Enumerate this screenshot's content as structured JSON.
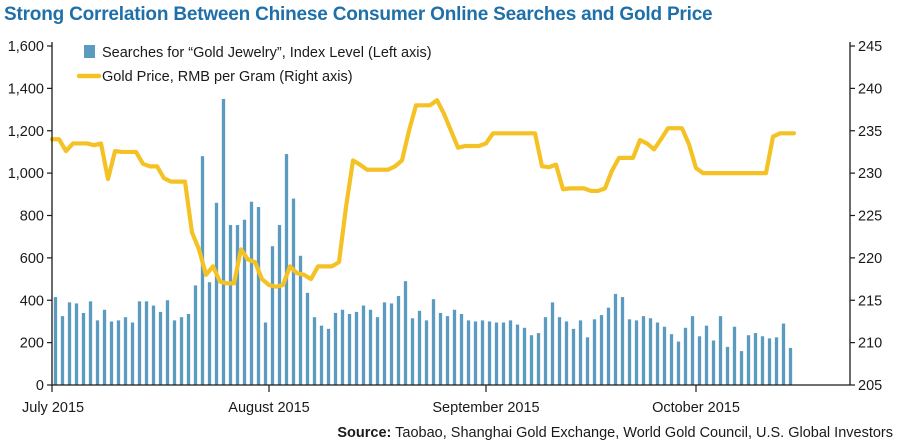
{
  "title": "Strong Correlation Between Chinese Consumer Online Searches and Gold Price",
  "source": {
    "label": "Source:",
    "text": "Taobao, Shanghai Gold Exchange, World Gold Council, U.S. Global Investors"
  },
  "colors": {
    "title": "#1f6fa8",
    "bars": "#5b9bc0",
    "line": "#f5c225",
    "axis": "#1a1a1a"
  },
  "chart_data": {
    "type": "bar",
    "title": "Strong Correlation Between Chinese Consumer Online Searches and Gold Price",
    "legend": {
      "placement": "top-left",
      "bars_label": "Searches for “Gold Jewelry”, Index Level (Left axis)",
      "line_label": "Gold Price, RMB per Gram (Right axis)"
    },
    "left_axis": {
      "ylim": [
        0,
        1600
      ],
      "ticks": [
        0,
        200,
        400,
        600,
        800,
        1000,
        1200,
        1400,
        1600
      ],
      "tick_labels": [
        "0",
        "200",
        "400",
        "600",
        "800",
        "1,000",
        "1,200",
        "1,400",
        "1,600"
      ]
    },
    "right_axis": {
      "ylim": [
        205,
        245
      ],
      "ticks": [
        205,
        210,
        215,
        220,
        225,
        230,
        235,
        240,
        245
      ],
      "tick_labels": [
        "205",
        "210",
        "215",
        "220",
        "225",
        "230",
        "235",
        "240",
        "245"
      ]
    },
    "x_axis": {
      "range_days": [
        1,
        115
      ],
      "ticks": [
        {
          "day": 1,
          "label": "July 2015"
        },
        {
          "day": 32,
          "label": "August 2015"
        },
        {
          "day": 63,
          "label": "September 2015"
        },
        {
          "day": 93,
          "label": "October 2015"
        }
      ]
    },
    "grid": false,
    "bars": {
      "name": "Searches for “Gold Jewelry”, Index Level (Left axis)",
      "values": [
        415,
        325,
        390,
        385,
        340,
        395,
        305,
        355,
        300,
        305,
        320,
        295,
        395,
        395,
        375,
        345,
        400,
        305,
        320,
        335,
        470,
        1080,
        485,
        860,
        1350,
        755,
        755,
        780,
        865,
        840,
        295,
        655,
        755,
        1090,
        880,
        610,
        435,
        320,
        280,
        265,
        340,
        355,
        335,
        345,
        375,
        355,
        320,
        390,
        385,
        420,
        490,
        315,
        350,
        305,
        405,
        340,
        325,
        355,
        335,
        305,
        300,
        305,
        300,
        295,
        295,
        305,
        285,
        270,
        235,
        245,
        320,
        390,
        320,
        300,
        265,
        305,
        225,
        310,
        330,
        365,
        430,
        415,
        310,
        305,
        325,
        315,
        295,
        275,
        240,
        205,
        270,
        325,
        230,
        280,
        210,
        325,
        180,
        275,
        160,
        235,
        245,
        230,
        220,
        225,
        290,
        175
      ],
      "first_day": 1
    },
    "line": {
      "name": "Gold Price, RMB per Gram (Right axis)",
      "points": [
        [
          1,
          234
        ],
        [
          2,
          234
        ],
        [
          3,
          232.6
        ],
        [
          4,
          233.5
        ],
        [
          5,
          233.5
        ],
        [
          6,
          233.5
        ],
        [
          7,
          233.3
        ],
        [
          8,
          233.5
        ],
        [
          9,
          229.3
        ],
        [
          10,
          232.6
        ],
        [
          11,
          232.5
        ],
        [
          12,
          232.5
        ],
        [
          13,
          232.5
        ],
        [
          14,
          231.1
        ],
        [
          15,
          230.8
        ],
        [
          16,
          230.8
        ],
        [
          17,
          229.4
        ],
        [
          18,
          229.0
        ],
        [
          19,
          229.0
        ],
        [
          20,
          229.0
        ],
        [
          21,
          223.0
        ],
        [
          22,
          221.0
        ],
        [
          23,
          218.0
        ],
        [
          24,
          219.0
        ],
        [
          25,
          217.2
        ],
        [
          26,
          217.0
        ],
        [
          27,
          217.0
        ],
        [
          28,
          221.0
        ],
        [
          29,
          219.8
        ],
        [
          30,
          219.5
        ],
        [
          31,
          217.5
        ],
        [
          32,
          216.8
        ],
        [
          33,
          216.6
        ],
        [
          34,
          216.8
        ],
        [
          35,
          219.0
        ],
        [
          36,
          218.2
        ],
        [
          37,
          218.0
        ],
        [
          38,
          217.5
        ],
        [
          39,
          219.0
        ],
        [
          40,
          219.0
        ],
        [
          41,
          219.0
        ],
        [
          42,
          219.5
        ],
        [
          43,
          226.0
        ],
        [
          44,
          231.5
        ],
        [
          45,
          231.0
        ],
        [
          46,
          230.4
        ],
        [
          47,
          230.4
        ],
        [
          48,
          230.4
        ],
        [
          49,
          230.4
        ],
        [
          50,
          230.8
        ],
        [
          51,
          231.5
        ],
        [
          52,
          235.0
        ],
        [
          53,
          238.0
        ],
        [
          54,
          238.0
        ],
        [
          55,
          238.0
        ],
        [
          56,
          238.6
        ],
        [
          57,
          237.0
        ],
        [
          58,
          235.0
        ],
        [
          59,
          233.0
        ],
        [
          60,
          233.2
        ],
        [
          61,
          233.2
        ],
        [
          62,
          233.2
        ],
        [
          63,
          233.5
        ],
        [
          64,
          234.7
        ],
        [
          65,
          234.7
        ],
        [
          66,
          234.7
        ],
        [
          67,
          234.7
        ],
        [
          68,
          234.7
        ],
        [
          69,
          234.7
        ],
        [
          70,
          234.7
        ],
        [
          71,
          230.8
        ],
        [
          72,
          230.7
        ],
        [
          73,
          231.0
        ],
        [
          74,
          228.1
        ],
        [
          75,
          228.2
        ],
        [
          76,
          228.2
        ],
        [
          77,
          228.2
        ],
        [
          78,
          227.9
        ],
        [
          79,
          227.9
        ],
        [
          80,
          228.2
        ],
        [
          81,
          230.3
        ],
        [
          82,
          231.8
        ],
        [
          83,
          231.8
        ],
        [
          84,
          231.8
        ],
        [
          85,
          233.9
        ],
        [
          86,
          233.5
        ],
        [
          87,
          232.8
        ],
        [
          88,
          234.0
        ],
        [
          89,
          235.3
        ],
        [
          90,
          235.3
        ],
        [
          91,
          235.3
        ],
        [
          92,
          233.4
        ],
        [
          93,
          230.6
        ],
        [
          94,
          230.0
        ],
        [
          95,
          230.0
        ],
        [
          96,
          230.0
        ],
        [
          97,
          230.0
        ],
        [
          98,
          230.0
        ],
        [
          99,
          230.0
        ],
        [
          100,
          230.0
        ],
        [
          101,
          230.0
        ],
        [
          102,
          230.0
        ],
        [
          103,
          230.0
        ],
        [
          104,
          234.3
        ],
        [
          105,
          234.7
        ],
        [
          106,
          234.7
        ],
        [
          107,
          234.7
        ]
      ]
    }
  }
}
